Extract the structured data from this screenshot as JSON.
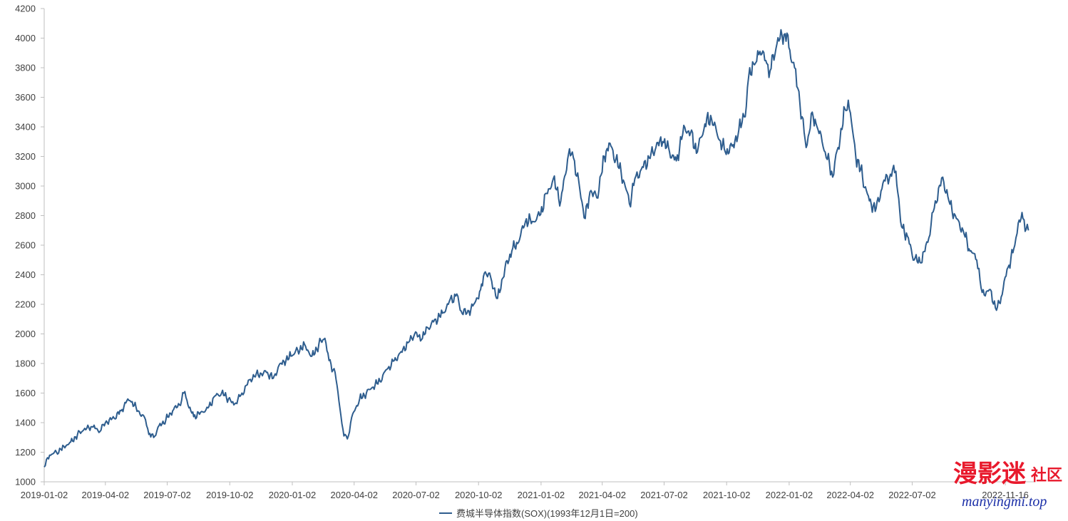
{
  "chart_data": {
    "type": "line",
    "title": "",
    "xlabel": "",
    "ylabel": "",
    "ylim": [
      1000,
      4200
    ],
    "yticks": [
      1000,
      1200,
      1400,
      1600,
      1800,
      2000,
      2200,
      2400,
      2600,
      2800,
      3000,
      3200,
      3400,
      3600,
      3800,
      4000,
      4200
    ],
    "xlim": [
      "2019-01-02",
      "2022-12-30"
    ],
    "xticks": [
      "2019-01-02",
      "2019-04-02",
      "2019-07-02",
      "2019-10-02",
      "2020-01-02",
      "2020-04-02",
      "2020-07-02",
      "2020-10-02",
      "2021-01-02",
      "2021-04-02",
      "2021-07-02",
      "2021-10-02",
      "2022-01-02",
      "2022-04-02",
      "2022-07-02",
      "2022-11-16"
    ],
    "grid": false,
    "legend_position": "bottom",
    "series": [
      {
        "name": "费城半导体指数(SOX)(1993年12月1日=200)",
        "color": "#2e5d8e",
        "points": [
          [
            "2019-01-02",
            1100
          ],
          [
            "2019-01-10",
            1180
          ],
          [
            "2019-01-20",
            1200
          ],
          [
            "2019-01-31",
            1240
          ],
          [
            "2019-02-10",
            1270
          ],
          [
            "2019-02-20",
            1320
          ],
          [
            "2019-03-01",
            1350
          ],
          [
            "2019-03-15",
            1370
          ],
          [
            "2019-03-25",
            1340
          ],
          [
            "2019-04-02",
            1400
          ],
          [
            "2019-04-15",
            1430
          ],
          [
            "2019-04-25",
            1480
          ],
          [
            "2019-05-05",
            1560
          ],
          [
            "2019-05-10",
            1540
          ],
          [
            "2019-05-20",
            1480
          ],
          [
            "2019-05-31",
            1420
          ],
          [
            "2019-06-05",
            1320
          ],
          [
            "2019-06-12",
            1300
          ],
          [
            "2019-06-20",
            1380
          ],
          [
            "2019-06-30",
            1420
          ],
          [
            "2019-07-10",
            1480
          ],
          [
            "2019-07-20",
            1520
          ],
          [
            "2019-07-28",
            1610
          ],
          [
            "2019-08-03",
            1500
          ],
          [
            "2019-08-10",
            1440
          ],
          [
            "2019-08-20",
            1470
          ],
          [
            "2019-08-31",
            1500
          ],
          [
            "2019-09-10",
            1580
          ],
          [
            "2019-09-20",
            1600
          ],
          [
            "2019-09-30",
            1560
          ],
          [
            "2019-10-08",
            1520
          ],
          [
            "2019-10-20",
            1600
          ],
          [
            "2019-10-31",
            1690
          ],
          [
            "2019-11-10",
            1730
          ],
          [
            "2019-11-25",
            1740
          ],
          [
            "2019-12-05",
            1700
          ],
          [
            "2019-12-15",
            1800
          ],
          [
            "2019-12-31",
            1850
          ],
          [
            "2020-01-10",
            1890
          ],
          [
            "2020-01-20",
            1930
          ],
          [
            "2020-01-31",
            1850
          ],
          [
            "2020-02-10",
            1930
          ],
          [
            "2020-02-19",
            1970
          ],
          [
            "2020-02-25",
            1820
          ],
          [
            "2020-03-05",
            1740
          ],
          [
            "2020-03-12",
            1500
          ],
          [
            "2020-03-18",
            1310
          ],
          [
            "2020-03-23",
            1290
          ],
          [
            "2020-03-31",
            1460
          ],
          [
            "2020-04-10",
            1560
          ],
          [
            "2020-04-20",
            1600
          ],
          [
            "2020-04-30",
            1640
          ],
          [
            "2020-05-10",
            1680
          ],
          [
            "2020-05-20",
            1760
          ],
          [
            "2020-05-31",
            1820
          ],
          [
            "2020-06-10",
            1880
          ],
          [
            "2020-06-20",
            1940
          ],
          [
            "2020-06-30",
            2000
          ],
          [
            "2020-07-10",
            1960
          ],
          [
            "2020-07-20",
            2040
          ],
          [
            "2020-07-31",
            2100
          ],
          [
            "2020-08-10",
            2140
          ],
          [
            "2020-08-20",
            2220
          ],
          [
            "2020-08-31",
            2270
          ],
          [
            "2020-09-05",
            2160
          ],
          [
            "2020-09-15",
            2140
          ],
          [
            "2020-09-25",
            2200
          ],
          [
            "2020-10-05",
            2300
          ],
          [
            "2020-10-12",
            2420
          ],
          [
            "2020-10-20",
            2380
          ],
          [
            "2020-10-30",
            2240
          ],
          [
            "2020-11-10",
            2450
          ],
          [
            "2020-11-20",
            2560
          ],
          [
            "2020-11-30",
            2620
          ],
          [
            "2020-12-10",
            2760
          ],
          [
            "2020-12-20",
            2760
          ],
          [
            "2020-12-31",
            2800
          ],
          [
            "2021-01-10",
            2950
          ],
          [
            "2021-01-20",
            3050
          ],
          [
            "2021-01-31",
            2900
          ],
          [
            "2021-02-10",
            3180
          ],
          [
            "2021-02-17",
            3230
          ],
          [
            "2021-02-28",
            2980
          ],
          [
            "2021-03-08",
            2780
          ],
          [
            "2021-03-15",
            2960
          ],
          [
            "2021-03-25",
            2920
          ],
          [
            "2021-04-05",
            3200
          ],
          [
            "2021-04-12",
            3290
          ],
          [
            "2021-04-22",
            3180
          ],
          [
            "2021-05-03",
            3040
          ],
          [
            "2021-05-12",
            2880
          ],
          [
            "2021-05-20",
            3050
          ],
          [
            "2021-05-31",
            3130
          ],
          [
            "2021-06-10",
            3190
          ],
          [
            "2021-06-20",
            3260
          ],
          [
            "2021-06-30",
            3300
          ],
          [
            "2021-07-10",
            3230
          ],
          [
            "2021-07-20",
            3170
          ],
          [
            "2021-07-31",
            3410
          ],
          [
            "2021-08-10",
            3360
          ],
          [
            "2021-08-20",
            3230
          ],
          [
            "2021-08-31",
            3420
          ],
          [
            "2021-09-10",
            3450
          ],
          [
            "2021-09-20",
            3320
          ],
          [
            "2021-09-30",
            3230
          ],
          [
            "2021-10-10",
            3270
          ],
          [
            "2021-10-20",
            3380
          ],
          [
            "2021-10-31",
            3540
          ],
          [
            "2021-11-05",
            3800
          ],
          [
            "2021-11-12",
            3820
          ],
          [
            "2021-11-20",
            3910
          ],
          [
            "2021-11-30",
            3830
          ],
          [
            "2021-12-05",
            3780
          ],
          [
            "2021-12-15",
            3960
          ],
          [
            "2021-12-27",
            4030
          ],
          [
            "2022-01-03",
            3920
          ],
          [
            "2022-01-10",
            3800
          ],
          [
            "2022-01-18",
            3550
          ],
          [
            "2022-01-27",
            3260
          ],
          [
            "2022-02-05",
            3500
          ],
          [
            "2022-02-12",
            3400
          ],
          [
            "2022-02-24",
            3230
          ],
          [
            "2022-03-07",
            3060
          ],
          [
            "2022-03-15",
            3260
          ],
          [
            "2022-03-25",
            3520
          ],
          [
            "2022-03-30",
            3580
          ],
          [
            "2022-04-10",
            3200
          ],
          [
            "2022-04-20",
            3060
          ],
          [
            "2022-04-30",
            2900
          ],
          [
            "2022-05-10",
            2850
          ],
          [
            "2022-05-20",
            3020
          ],
          [
            "2022-05-31",
            3080
          ],
          [
            "2022-06-08",
            3100
          ],
          [
            "2022-06-15",
            2760
          ],
          [
            "2022-06-25",
            2660
          ],
          [
            "2022-07-05",
            2500
          ],
          [
            "2022-07-15",
            2480
          ],
          [
            "2022-07-25",
            2620
          ],
          [
            "2022-08-05",
            2900
          ],
          [
            "2022-08-16",
            3060
          ],
          [
            "2022-08-25",
            2900
          ],
          [
            "2022-09-05",
            2780
          ],
          [
            "2022-09-15",
            2700
          ],
          [
            "2022-09-25",
            2560
          ],
          [
            "2022-10-05",
            2500
          ],
          [
            "2022-10-13",
            2280
          ],
          [
            "2022-10-25",
            2300
          ],
          [
            "2022-11-03",
            2160
          ],
          [
            "2022-11-10",
            2250
          ],
          [
            "2022-11-20",
            2450
          ],
          [
            "2022-11-30",
            2600
          ],
          [
            "2022-12-05",
            2750
          ],
          [
            "2022-12-12",
            2780
          ],
          [
            "2022-12-20",
            2700
          ]
        ]
      }
    ]
  },
  "watermark": {
    "logo_text": "漫影迷",
    "logo_suffix": "社区",
    "url": "manyingmi.top"
  }
}
